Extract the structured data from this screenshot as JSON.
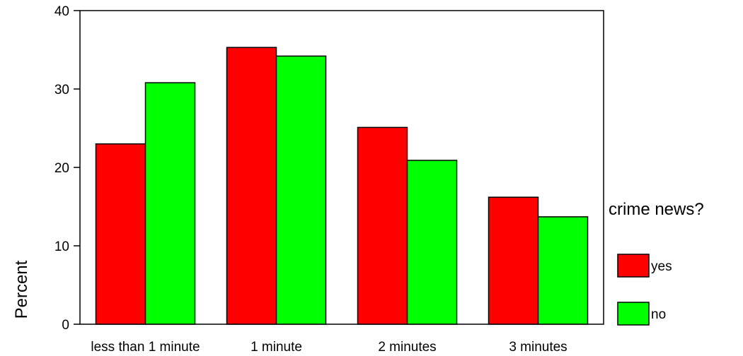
{
  "chart_data": {
    "type": "bar",
    "categories": [
      "less than 1 minute",
      "1 minute",
      "2 minutes",
      "3 minutes"
    ],
    "series": [
      {
        "name": "yes",
        "values": [
          23.0,
          35.3,
          25.1,
          16.2
        ],
        "color": "#ff0000"
      },
      {
        "name": "no",
        "values": [
          30.8,
          34.2,
          20.9,
          13.7
        ],
        "color": "#00ff00"
      }
    ],
    "ylabel": "Percent",
    "xlabel": "",
    "ylim": [
      0,
      40
    ],
    "yticks": [
      0,
      10,
      20,
      30,
      40
    ],
    "grid": false,
    "legend": {
      "title": "crime news?",
      "placement": "right"
    }
  }
}
